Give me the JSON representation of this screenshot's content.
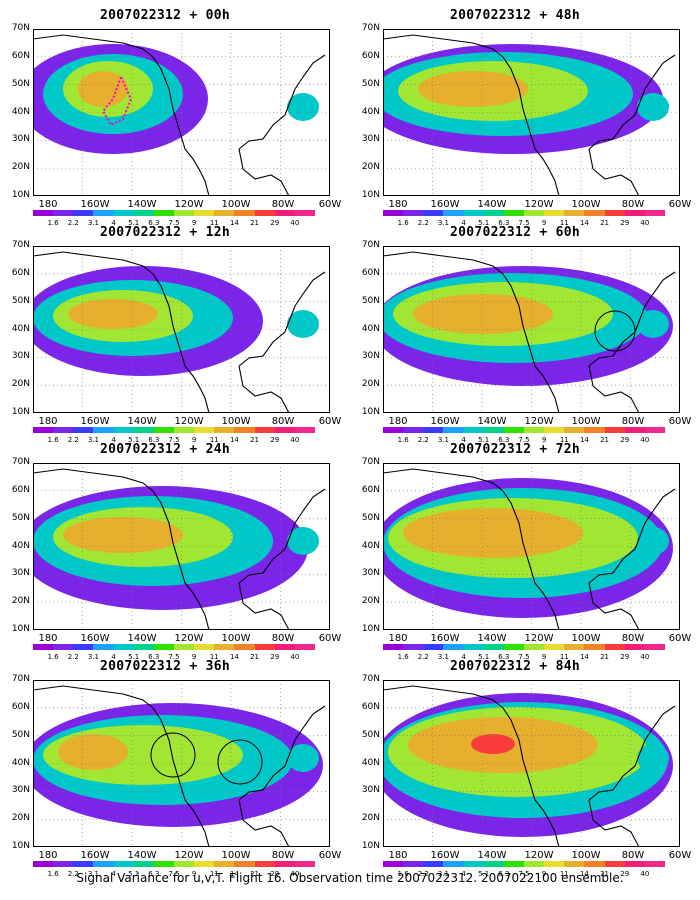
{
  "caption": "Signal Variance for u,v,T. Flight 16. Observation time 2007022312. 2007022100 ensemble.",
  "panels": [
    {
      "title": "2007022312 + 00h"
    },
    {
      "title": "2007022312 + 48h"
    },
    {
      "title": "2007022312 + 12h"
    },
    {
      "title": "2007022312 + 60h"
    },
    {
      "title": "2007022312 + 24h"
    },
    {
      "title": "2007022312 + 72h"
    },
    {
      "title": "2007022312 + 36h"
    },
    {
      "title": "2007022312 + 84h"
    }
  ],
  "lat_labels": [
    "70N",
    "60N",
    "50N",
    "40N",
    "30N",
    "20N",
    "10N"
  ],
  "lon_labels": [
    "180",
    "160W",
    "140W",
    "120W",
    "100W",
    "80W",
    "60W"
  ],
  "colorbar": {
    "labels": [
      "1.6",
      "2.2",
      "3.1",
      "4",
      "5.1",
      "6.3",
      "7.5",
      "9",
      "11",
      "14",
      "21",
      "29",
      "40"
    ],
    "colors": [
      "#9a00d6",
      "#7a25e8",
      "#3b3bff",
      "#1ea0ff",
      "#00c8c8",
      "#00d28c",
      "#30e000",
      "#a0e632",
      "#e6dc32",
      "#e6af2d",
      "#f08228",
      "#fa3c3c",
      "#f01e78",
      "#f0288c"
    ]
  }
}
